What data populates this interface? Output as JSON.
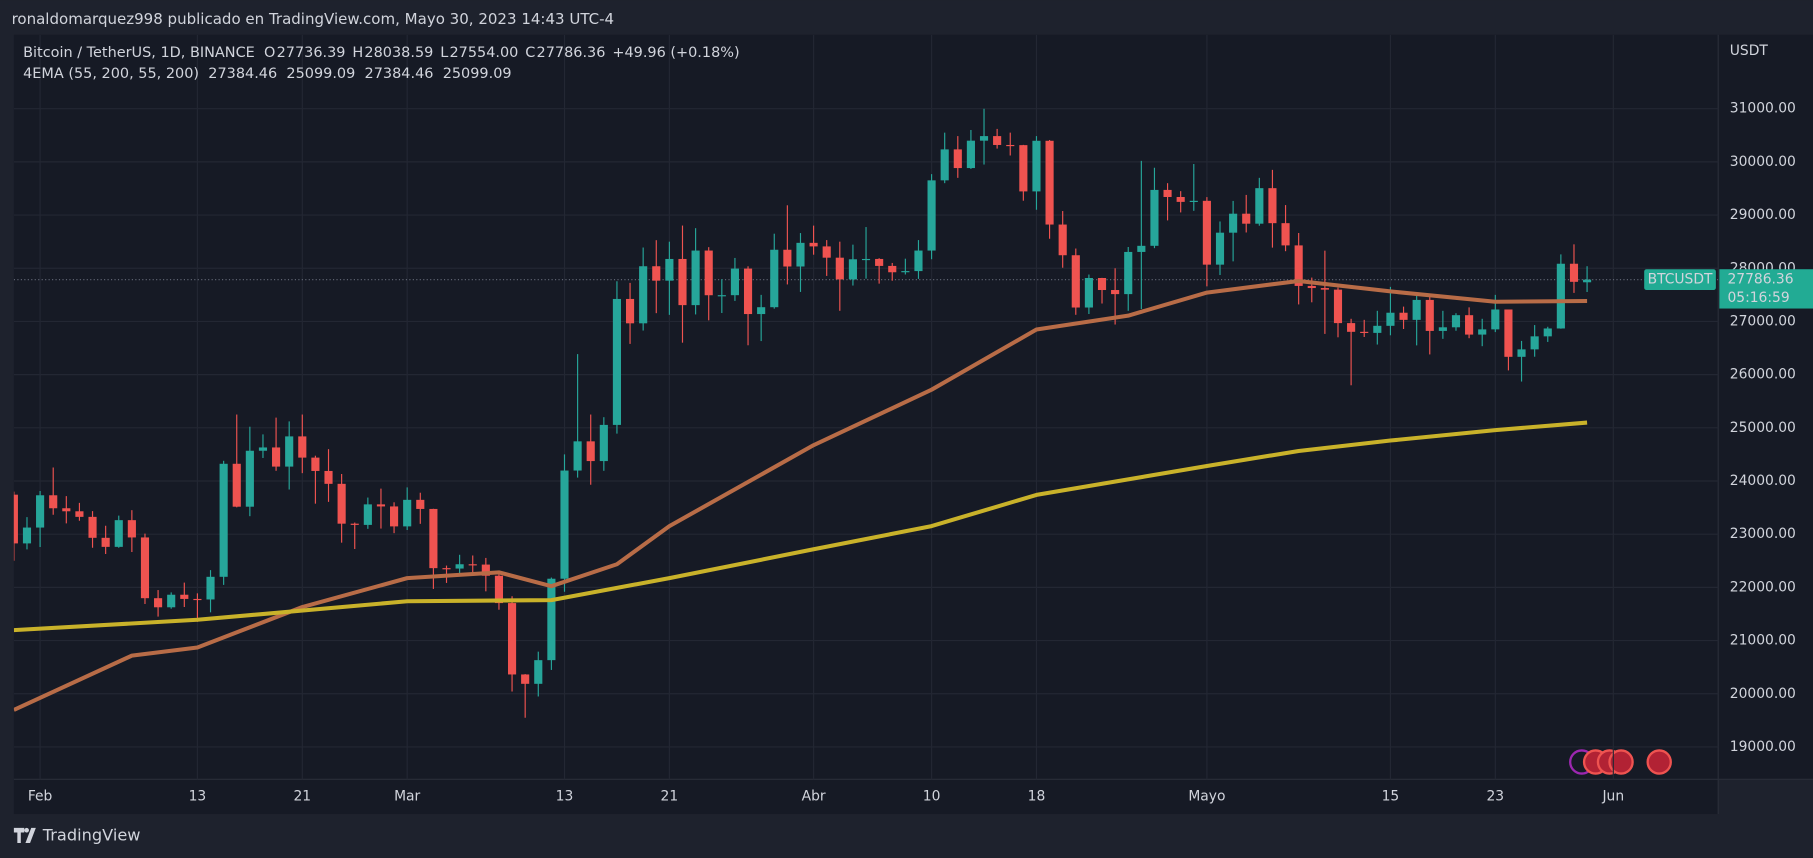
{
  "header": {
    "text": "ronaldomarquez998 publicado en TradingView.com, Mayo 30, 2023 14:43 UTC-4"
  },
  "footer": {
    "brand": "TradingView"
  },
  "chart_data": {
    "type": "candlestick",
    "title": "Bitcoin / TetherUS, 1D, BINANCE",
    "ohlc_legend": [
      {
        "key": "O",
        "value": "27736.39"
      },
      {
        "key": "H",
        "value": "28038.59"
      },
      {
        "key": "L",
        "value": "27554.00"
      },
      {
        "key": "C",
        "value": "27786.36"
      }
    ],
    "change": "+49.96 (+0.18%)",
    "indicator": {
      "name": "4EMA (55, 200, 55, 200)",
      "values": [
        {
          "text": "27384.46",
          "color": "#1c24b8"
        },
        {
          "text": "25099.09",
          "color": "#8e24aa"
        },
        {
          "text": "27384.46",
          "color": "#ff9800"
        },
        {
          "text": "25099.09",
          "color": "#ffeb3b"
        }
      ]
    },
    "y_axis_label": "USDT",
    "price_tag": {
      "symbol": "BTCUSDT",
      "price": "27786.36",
      "countdown": "05:16:59"
    },
    "up_color": "#26a69a",
    "down_color": "#ef5350",
    "x": [
      "2023-01-30",
      "2023-01-31",
      "2023-02-01",
      "2023-02-02",
      "2023-02-03",
      "2023-02-04",
      "2023-02-05",
      "2023-02-06",
      "2023-02-07",
      "2023-02-08",
      "2023-02-09",
      "2023-02-10",
      "2023-02-11",
      "2023-02-12",
      "2023-02-13",
      "2023-02-14",
      "2023-02-15",
      "2023-02-16",
      "2023-02-17",
      "2023-02-18",
      "2023-02-19",
      "2023-02-20",
      "2023-02-21",
      "2023-02-22",
      "2023-02-23",
      "2023-02-24",
      "2023-02-25",
      "2023-02-26",
      "2023-02-27",
      "2023-02-28",
      "2023-03-01",
      "2023-03-02",
      "2023-03-03",
      "2023-03-04",
      "2023-03-05",
      "2023-03-06",
      "2023-03-07",
      "2023-03-08",
      "2023-03-09",
      "2023-03-10",
      "2023-03-11",
      "2023-03-12",
      "2023-03-13",
      "2023-03-14",
      "2023-03-15",
      "2023-03-16",
      "2023-03-17",
      "2023-03-18",
      "2023-03-19",
      "2023-03-20",
      "2023-03-21",
      "2023-03-22",
      "2023-03-23",
      "2023-03-24",
      "2023-03-25",
      "2023-03-26",
      "2023-03-27",
      "2023-03-28",
      "2023-03-29",
      "2023-03-30",
      "2023-03-31",
      "2023-04-01",
      "2023-04-02",
      "2023-04-03",
      "2023-04-04",
      "2023-04-05",
      "2023-04-06",
      "2023-04-07",
      "2023-04-08",
      "2023-04-09",
      "2023-04-10",
      "2023-04-11",
      "2023-04-12",
      "2023-04-13",
      "2023-04-14",
      "2023-04-15",
      "2023-04-16",
      "2023-04-17",
      "2023-04-18",
      "2023-04-19",
      "2023-04-20",
      "2023-04-21",
      "2023-04-22",
      "2023-04-23",
      "2023-04-24",
      "2023-04-25",
      "2023-04-26",
      "2023-04-27",
      "2023-04-28",
      "2023-04-29",
      "2023-04-30",
      "2023-05-01",
      "2023-05-02",
      "2023-05-03",
      "2023-05-04",
      "2023-05-05",
      "2023-05-06",
      "2023-05-07",
      "2023-05-08",
      "2023-05-09",
      "2023-05-10",
      "2023-05-11",
      "2023-05-12",
      "2023-05-13",
      "2023-05-14",
      "2023-05-15",
      "2023-05-16",
      "2023-05-17",
      "2023-05-18",
      "2023-05-19",
      "2023-05-20",
      "2023-05-21",
      "2023-05-22",
      "2023-05-23",
      "2023-05-24",
      "2023-05-25",
      "2023-05-26",
      "2023-05-27",
      "2023-05-28",
      "2023-05-29",
      "2023-05-30"
    ],
    "open": [
      23743,
      22827,
      23125,
      23732,
      23488,
      23431,
      23326,
      22932,
      22762,
      23264,
      22939,
      21797,
      21626,
      21862,
      21783,
      21773,
      22199,
      24324,
      23517,
      24569,
      24631,
      24271,
      24839,
      24440,
      24189,
      23947,
      23198,
      23175,
      23561,
      23522,
      23147,
      23646,
      23475,
      22362,
      22354,
      22435,
      22429,
      22219,
      21705,
      20363,
      20187,
      20632,
      22163,
      24197,
      24746,
      24375,
      25055,
      27423,
      26965,
      28038,
      27767,
      28175,
      27307,
      28333,
      27493,
      27494,
      27994,
      27139,
      27268,
      28348,
      28033,
      28478,
      28411,
      28199,
      27790,
      28169,
      28175,
      28044,
      27925,
      27947,
      28333,
      29653,
      30235,
      29884,
      30399,
      30485,
      30318,
      30315,
      29445,
      30397,
      28822,
      28245,
      27262,
      27817,
      27591,
      27514,
      28307,
      28422,
      29473,
      29340,
      29248,
      29268,
      28068,
      28669,
      29026,
      28838,
      29506,
      28848,
      28430,
      27668,
      27628,
      27598,
      26969,
      26805,
      26785,
      26918,
      27164,
      27030,
      27405,
      26822,
      26890,
      27118,
      26753,
      26851,
      27225,
      26335,
      26475,
      26720,
      26868,
      28085,
      27736.39
    ],
    "high": [
      23800,
      23320,
      23812,
      24255,
      23715,
      23590,
      23433,
      23160,
      23350,
      23452,
      23011,
      21950,
      21906,
      22090,
      21888,
      22325,
      24380,
      25250,
      25021,
      24877,
      25192,
      25121,
      25250,
      24476,
      24599,
      24132,
      23219,
      23689,
      23857,
      23600,
      23880,
      23780,
      23478,
      22410,
      22613,
      22600,
      22554,
      22267,
      21834,
      20370,
      20792,
      22185,
      24500,
      26386,
      25250,
      25200,
      27756,
      27725,
      28390,
      28528,
      28500,
      28803,
      28754,
      28397,
      27795,
      28194,
      28037,
      27500,
      28650,
      29184,
      28662,
      28802,
      28530,
      28500,
      28444,
      28775,
      28190,
      28100,
      28180,
      28530,
      29770,
      30550,
      30485,
      30600,
      31000,
      30620,
      30550,
      30320,
      30485,
      30412,
      29076,
      28371,
      27882,
      27820,
      28000,
      28400,
      30020,
      29890,
      29600,
      29450,
      29960,
      29338,
      28880,
      29266,
      29379,
      29700,
      29850,
      29188,
      28663,
      27825,
      28331,
      27636,
      27050,
      27030,
      27200,
      27650,
      27279,
      27480,
      27485,
      27200,
      27155,
      27265,
      27050,
      27500,
      27225,
      26634,
      26932,
      26900,
      28261,
      28450,
      28038.59
    ],
    "low": [
      22500,
      22715,
      22760,
      23366,
      23204,
      23252,
      22745,
      22628,
      22745,
      22665,
      21688,
      21451,
      21599,
      21631,
      21352,
      21531,
      22047,
      23505,
      23339,
      24433,
      24192,
      23840,
      24148,
      23574,
      23608,
      22841,
      22722,
      23101,
      23106,
      23020,
      23079,
      23195,
      21971,
      22084,
      22256,
      22274,
      21926,
      21580,
      20042,
      19549,
      19949,
      20448,
      21918,
      24064,
      23930,
      24192,
      24890,
      26578,
      26829,
      27156,
      27124,
      26601,
      27132,
      27021,
      27159,
      27386,
      26552,
      26631,
      27240,
      27696,
      27555,
      28255,
      27856,
      27200,
      27675,
      27805,
      27711,
      27766,
      27883,
      27800,
      28170,
      29600,
      29700,
      29868,
      29950,
      30250,
      30120,
      29270,
      29100,
      28555,
      28010,
      27125,
      27140,
      27337,
      26942,
      27200,
      27235,
      28378,
      28900,
      29050,
      29080,
      27660,
      27873,
      28130,
      28673,
      28800,
      28388,
      28321,
      27320,
      27360,
      26766,
      26702,
      25800,
      26708,
      26566,
      26740,
      26858,
      26550,
      26380,
      26673,
      26825,
      26685,
      26535,
      26800,
      26080,
      25870,
      26337,
      26615,
      26863,
      27537,
      27554
    ],
    "close": [
      22827,
      23125,
      23732,
      23488,
      23431,
      23326,
      22932,
      22762,
      23264,
      22939,
      21797,
      21626,
      21862,
      21783,
      21773,
      22199,
      24324,
      23517,
      24569,
      24631,
      24271,
      24839,
      24440,
      24189,
      23947,
      23198,
      23175,
      23561,
      23522,
      23147,
      23646,
      23475,
      22362,
      22354,
      22435,
      22429,
      22219,
      21705,
      20363,
      20187,
      20632,
      22163,
      24197,
      24746,
      24375,
      25055,
      27423,
      26965,
      28038,
      27767,
      28175,
      27307,
      28333,
      27493,
      27494,
      27994,
      27139,
      27268,
      28348,
      28033,
      28478,
      28411,
      28199,
      27790,
      28169,
      28175,
      28044,
      27925,
      27947,
      28333,
      29653,
      30235,
      29884,
      30399,
      30485,
      30318,
      30315,
      29445,
      30397,
      28822,
      28245,
      27262,
      27817,
      27591,
      27514,
      28307,
      28422,
      29473,
      29340,
      29248,
      29268,
      28068,
      28669,
      29026,
      28838,
      29506,
      28848,
      28430,
      27668,
      27628,
      27598,
      26969,
      26805,
      26785,
      26918,
      27164,
      27030,
      27405,
      26822,
      26890,
      27118,
      26753,
      26851,
      27225,
      26335,
      26475,
      26720,
      26868,
      28085,
      27745,
      27786.36
    ],
    "series": [
      {
        "color": "#b86c47",
        "x": [
          "2023-01-30",
          "2023-02-08",
          "2023-02-13",
          "2023-02-21",
          "2023-03-01",
          "2023-03-08",
          "2023-03-12",
          "2023-03-17",
          "2023-03-21",
          "2023-04-01",
          "2023-04-10",
          "2023-04-18",
          "2023-04-25",
          "2023-05-01",
          "2023-05-08",
          "2023-05-15",
          "2023-05-23",
          "2023-05-30"
        ],
        "values": [
          19696,
          20717,
          20870,
          21630,
          22174,
          22283,
          22022,
          22435,
          23152,
          24674,
          25717,
          26848,
          27109,
          27543,
          27761,
          27565,
          27370,
          27384.46
        ]
      },
      {
        "color": "#c9b22a",
        "x": [
          "2023-01-30",
          "2023-02-13",
          "2023-03-01",
          "2023-03-12",
          "2023-03-21",
          "2023-04-01",
          "2023-04-10",
          "2023-04-18",
          "2023-05-01",
          "2023-05-08",
          "2023-05-15",
          "2023-05-23",
          "2023-05-30"
        ],
        "values": [
          21196,
          21391,
          21739,
          21761,
          22174,
          22717,
          23152,
          23739,
          24283,
          24565,
          24761,
          24957,
          25099.09
        ]
      }
    ],
    "xlim": [
      "2023-01-30",
      "2023-06-09"
    ],
    "xticks": [
      {
        "value": "2023-02-01",
        "label": "Feb"
      },
      {
        "value": "2023-02-13",
        "label": "13"
      },
      {
        "value": "2023-02-21",
        "label": "21"
      },
      {
        "value": "2023-03-01",
        "label": "Mar"
      },
      {
        "value": "2023-03-13",
        "label": "13"
      },
      {
        "value": "2023-03-21",
        "label": "21"
      },
      {
        "value": "2023-04-01",
        "label": "Abr"
      },
      {
        "value": "2023-04-10",
        "label": "10"
      },
      {
        "value": "2023-04-18",
        "label": "18"
      },
      {
        "value": "2023-05-01",
        "label": "Mayo"
      },
      {
        "value": "2023-05-15",
        "label": "15"
      },
      {
        "value": "2023-05-23",
        "label": "23"
      },
      {
        "value": "2023-06-01",
        "label": "Jun"
      }
    ],
    "ylim": [
      18391,
      32391
    ],
    "yticks": [
      {
        "value": 19000,
        "label": "19000.00"
      },
      {
        "value": 20000,
        "label": "20000.00"
      },
      {
        "value": 21000,
        "label": "21000.00"
      },
      {
        "value": 22000,
        "label": "22000.00"
      },
      {
        "value": 23000,
        "label": "23000.00"
      },
      {
        "value": 24000,
        "label": "24000.00"
      },
      {
        "value": 25000,
        "label": "25000.00"
      },
      {
        "value": 26000,
        "label": "26000.00"
      },
      {
        "value": 27000,
        "label": "27000.00"
      },
      {
        "value": 28000,
        "label": "28000.00"
      },
      {
        "value": 29000,
        "label": "29000.00"
      },
      {
        "value": 30000,
        "label": "30000.00"
      },
      {
        "value": 31000,
        "label": "31000.00"
      }
    ],
    "grid": true
  }
}
